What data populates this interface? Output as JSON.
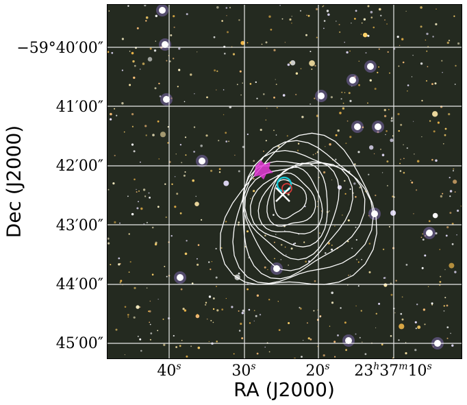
{
  "axes": {
    "xlabel": "RA (J2000)",
    "ylabel": "Dec (J2000)",
    "yticks": [
      "−59°40′00″",
      "41′00″",
      "42′00″",
      "43′00″",
      "44′00″",
      "45′00″"
    ],
    "xticks": [
      {
        "main": "40",
        "sup": "s",
        "pre": ""
      },
      {
        "main": "30",
        "sup": "s",
        "pre": ""
      },
      {
        "main": "20",
        "sup": "s",
        "pre": ""
      },
      {
        "main": "",
        "sup": "",
        "pre": "23h37m10s"
      }
    ]
  },
  "image": {
    "description_colors": {
      "background": "#242a20",
      "grid": "#ffffff",
      "contour": "#ffffff",
      "marker_circle": "#19c9d6",
      "magenta": "#e33bd6"
    },
    "markers": [
      "white-x-icon",
      "cyan-circle-icon",
      "red-circle-icon"
    ]
  }
}
